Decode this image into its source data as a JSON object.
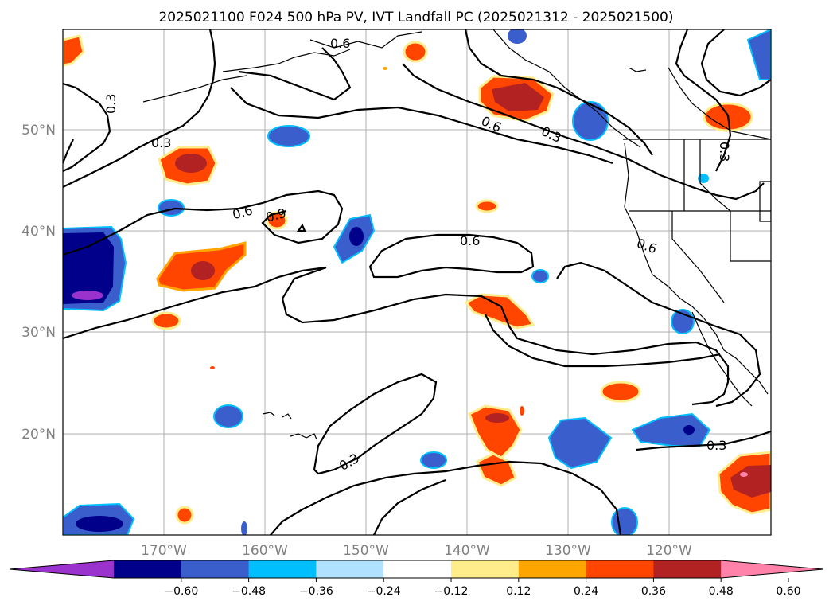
{
  "title": "2025021100 F024 500 hPa PV, IVT Landfall PC (2025021312 - 2025021500)",
  "map": {
    "lat_labels": [
      "50°N",
      "40°N",
      "30°N",
      "20°N"
    ],
    "lon_labels": [
      "170°W",
      "160°W",
      "150°W",
      "140°W",
      "130°W",
      "120°W"
    ],
    "grid": true,
    "contour_labels": [
      "0.6",
      "0.3",
      "0.3",
      "0.6",
      "0.3",
      "0.6",
      "0.9",
      "0.6",
      "0.6",
      "0.3",
      "0.3",
      "0.3"
    ]
  },
  "colorbar": {
    "ticks": [
      "−0.60",
      "−0.48",
      "−0.36",
      "−0.24",
      "−0.12",
      "0.12",
      "0.24",
      "0.36",
      "0.48",
      "0.60"
    ],
    "colors": [
      "#9a32cd",
      "#00008b",
      "#3a5fcd",
      "#00bfff",
      "#b0e2ff",
      "#ffffff",
      "#ffec8b",
      "#ffa500",
      "#ff4500",
      "#b22222",
      "#ff82ab"
    ],
    "extend": "both"
  }
}
